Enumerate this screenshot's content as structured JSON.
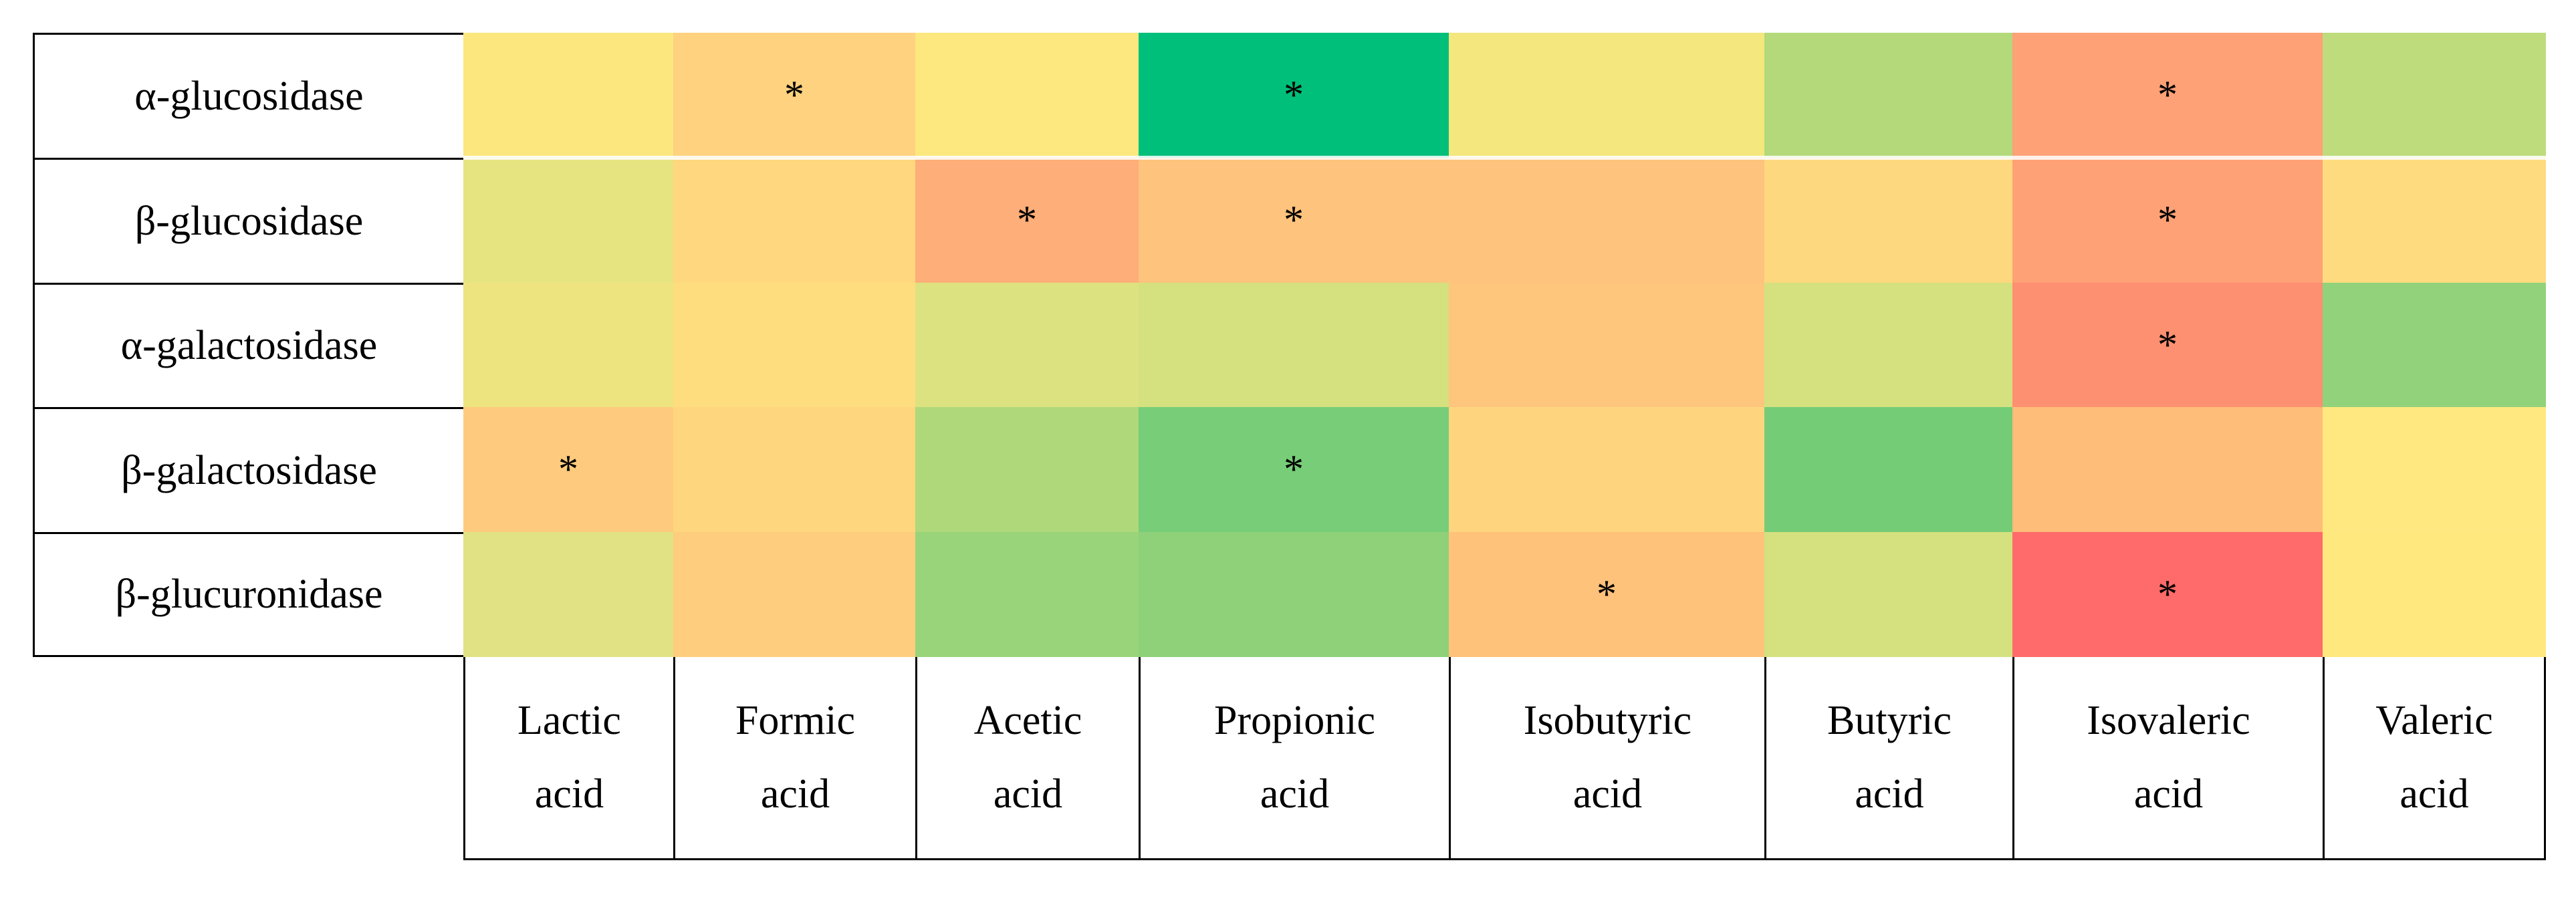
{
  "chart_data": {
    "type": "heatmap",
    "rows": [
      "α-glucosidase",
      "β-glucosidase",
      "α-galactosidase",
      "β-galactosidase",
      "β-glucuronidase"
    ],
    "columns": [
      [
        "Lactic",
        "acid"
      ],
      [
        "Formic",
        "acid"
      ],
      [
        "Acetic",
        "acid"
      ],
      [
        "Propionic",
        "acid"
      ],
      [
        "Isobutyric",
        "acid"
      ],
      [
        "Butyric",
        "acid"
      ],
      [
        "Isovaleric",
        "acid"
      ],
      [
        "Valeric",
        "acid"
      ]
    ],
    "colors": [
      [
        "#FBE77E",
        "#FED27E",
        "#FCE87E",
        "#00BF7A",
        "#F3E77E",
        "#B3D97B",
        "#FFA176",
        "#BEDC7C"
      ],
      [
        "#E6E480",
        "#FED77E",
        "#FEAE78",
        "#FEC37C",
        "#FEC37C",
        "#FED87E",
        "#FEA176",
        "#FEDB7E"
      ],
      [
        "#EDE480",
        "#FEDD7E",
        "#DDE280",
        "#D5E17F",
        "#FEC67D",
        "#D5E17F",
        "#FE9072",
        "#92D27A"
      ],
      [
        "#FECB7E",
        "#FED67E",
        "#AED87A",
        "#77CD78",
        "#FED57E",
        "#74CC77",
        "#FEBD78",
        "#FFE87F"
      ],
      [
        "#E1E283",
        "#FECD7E",
        "#9AD47A",
        "#8ED179",
        "#FEC27B",
        "#D5E17F",
        "#FF6A6A",
        "#FFE97F"
      ]
    ],
    "significance": [
      [
        "",
        "*",
        "",
        "*",
        "",
        "",
        "*",
        ""
      ],
      [
        "",
        "",
        "*",
        "*",
        "",
        "",
        "*",
        ""
      ],
      [
        "",
        "",
        "",
        "",
        "",
        "",
        "*",
        ""
      ],
      [
        "*",
        "",
        "",
        "*",
        "",
        "",
        "",
        ""
      ],
      [
        "",
        "",
        "",
        "",
        "*",
        "",
        "*",
        ""
      ]
    ],
    "color_scale": "red (low) - yellow - green (high)",
    "legend": "none"
  }
}
